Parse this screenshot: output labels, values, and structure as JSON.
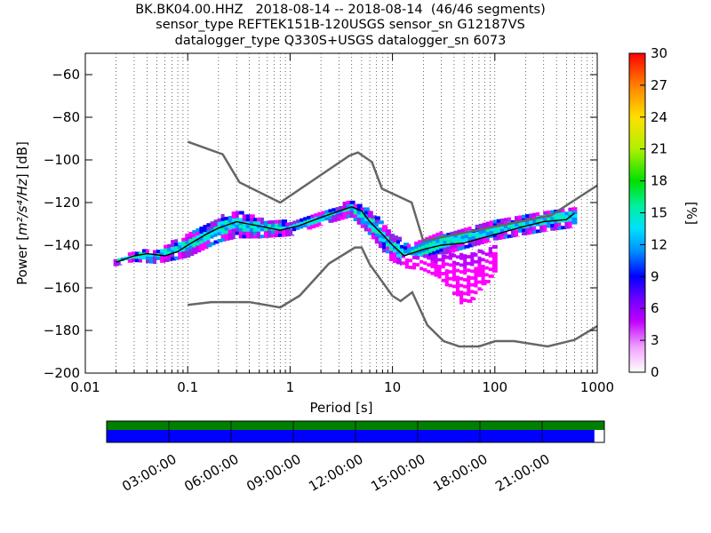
{
  "chart_data": {
    "type": "heatmap",
    "title_lines": [
      "BK.BK04.00.HHZ   2018-08-14 -- 2018-08-14  (46/46 segments)",
      "sensor_type REFTEK151B-120USGS sensor_sn G12187VS",
      "datalogger_type Q330S+USGS datalogger_sn 6073"
    ],
    "xlabel": "Period [s]",
    "ylabel_prefix": "Power ",
    "ylabel_unit": "m²/s⁴/Hz",
    "ylabel_suffix": " [dB]",
    "x_scale": "log",
    "xlim": [
      0.01,
      1000
    ],
    "ylim": [
      -200,
      -50
    ],
    "x_ticks": [
      {
        "value": 0.01,
        "label": "0.01"
      },
      {
        "value": 0.1,
        "label": "0.1"
      },
      {
        "value": 1,
        "label": "1"
      },
      {
        "value": 10,
        "label": "10"
      },
      {
        "value": 100,
        "label": "100"
      },
      {
        "value": 1000,
        "label": "1000"
      }
    ],
    "y_ticks": [
      {
        "value": -60,
        "label": "−60"
      },
      {
        "value": -80,
        "label": "−80"
      },
      {
        "value": -100,
        "label": "−100"
      },
      {
        "value": -120,
        "label": "−120"
      },
      {
        "value": -140,
        "label": "−140"
      },
      {
        "value": -160,
        "label": "−160"
      },
      {
        "value": -180,
        "label": "−180"
      },
      {
        "value": -200,
        "label": "−200"
      }
    ],
    "grid": "vertical dotted at minor log ticks",
    "colorbar": {
      "label": "[%]",
      "range": [
        0,
        30
      ],
      "ticks": [
        "0",
        "3",
        "6",
        "9",
        "12",
        "15",
        "18",
        "21",
        "24",
        "27",
        "30"
      ]
    },
    "noise_models": {
      "color": "#666666",
      "high": {
        "period": [
          0.1,
          0.22,
          0.32,
          0.8,
          3.8,
          4.6,
          6.3,
          7.9,
          15.4,
          20,
          354.8,
          1000
        ],
        "power": [
          -91.5,
          -97.4,
          -110.5,
          -120,
          -98,
          -96.5,
          -101,
          -113.5,
          -120,
          -138,
          -126,
          -112
        ]
      },
      "low": {
        "period": [
          0.1,
          0.17,
          0.4,
          0.8,
          1.24,
          2.4,
          4.3,
          5,
          6,
          10,
          12,
          15.6,
          21.9,
          31.6,
          45,
          70,
          101,
          154,
          328,
          600,
          1000
        ],
        "power": [
          -168,
          -166.7,
          -166.7,
          -169.2,
          -163.7,
          -148.6,
          -141.1,
          -141.1,
          -149,
          -163.8,
          -166.2,
          -162.1,
          -177.5,
          -185,
          -187.5,
          -187.5,
          -185,
          -185,
          -187.5,
          -184.4,
          -178
        ]
      }
    },
    "median": {
      "color": "#000000",
      "period": [
        0.02,
        0.03,
        0.04,
        0.06,
        0.08,
        0.1,
        0.15,
        0.2,
        0.3,
        0.5,
        0.8,
        1.2,
        2,
        3,
        4,
        5,
        6,
        8,
        10,
        13,
        20,
        30,
        50,
        100,
        200,
        300,
        500,
        600
      ],
      "power": [
        -148,
        -145,
        -144,
        -145,
        -143,
        -140,
        -135,
        -132,
        -129,
        -131,
        -133,
        -131,
        -127,
        -124,
        -122,
        -124,
        -129,
        -135,
        -140,
        -145,
        -142,
        -140,
        -139,
        -135,
        -131,
        -129,
        -128,
        -125
      ]
    },
    "density_bands": [
      {
        "period": [
          0.02,
          0.03,
          0.05,
          0.1,
          0.2,
          0.3,
          0.5,
          1,
          2,
          4,
          6,
          10,
          15,
          30,
          100,
          300,
          600
        ],
        "upper": [
          -147,
          -143,
          -142,
          -135,
          -127,
          -124,
          -127,
          -129,
          -125,
          -119,
          -123,
          -135,
          -140,
          -134,
          -129,
          -124,
          -122
        ],
        "lower": [
          -149,
          -147,
          -148,
          -145,
          -138,
          -136,
          -136,
          -135,
          -130,
          -126,
          -134,
          -147,
          -150,
          -144,
          -137,
          -133,
          -131
        ]
      },
      {
        "period": [
          13,
          20,
          30,
          40,
          50,
          70,
          100
        ],
        "upper": [
          -145,
          -145,
          -145,
          -144,
          -143,
          -143,
          -140
        ],
        "lower": [
          -150,
          -151,
          -155,
          -162,
          -168,
          -163,
          -152
        ]
      }
    ]
  },
  "timeline": {
    "labels": [
      "03:00:00",
      "06:00:00",
      "09:00:00",
      "12:00:00",
      "15:00:00",
      "18:00:00",
      "21:00:00"
    ],
    "coverage_fraction": 0.98,
    "top_bar_color": "#008000",
    "bottom_bar_color": "#0000ff"
  }
}
